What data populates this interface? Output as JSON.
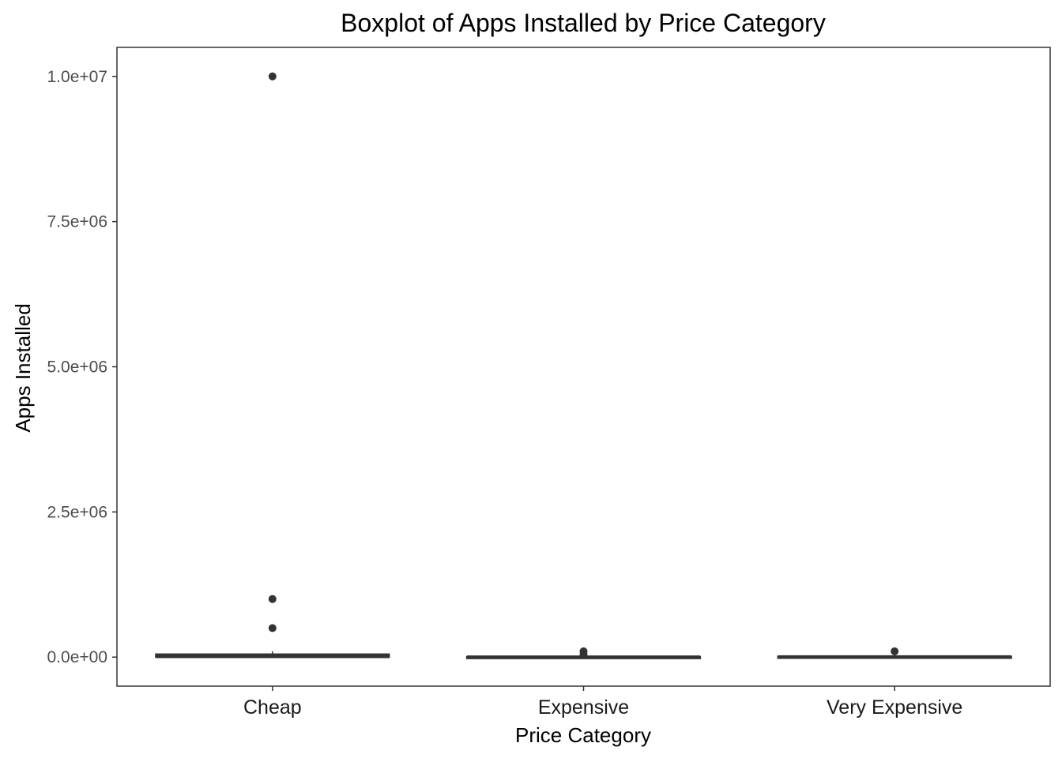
{
  "chart_data": {
    "type": "boxplot",
    "title": "Boxplot of Apps Installed by Price Category",
    "xlabel": "Price Category",
    "ylabel": "Apps Installed",
    "categories": [
      "Cheap",
      "Expensive",
      "Very Expensive"
    ],
    "ylim": [
      -500000,
      10500000
    ],
    "y_ticks": [
      0,
      2500000,
      5000000,
      7500000,
      10000000
    ],
    "y_tick_labels": [
      "0.0e+00",
      "2.5e+06",
      "5.0e+06",
      "7.5e+06",
      "1.0e+07"
    ],
    "boxes": [
      {
        "category": "Cheap",
        "min": 0,
        "q1": 1000,
        "median": 10000,
        "q3": 50000,
        "max": 100000,
        "outliers": [
          500000,
          1000000,
          10000000
        ]
      },
      {
        "category": "Expensive",
        "min": 0,
        "q1": 0,
        "median": 1000,
        "q3": 5000,
        "max": 10000,
        "outliers": [
          50000,
          100000
        ]
      },
      {
        "category": "Very Expensive",
        "min": 0,
        "q1": 1000,
        "median": 5000,
        "q3": 10000,
        "max": 50000,
        "outliers": [
          100000
        ]
      }
    ],
    "grid": false,
    "legend": "none",
    "colors": {
      "box": "#333333",
      "outlier": "#333333",
      "panel_border": "#333333",
      "background": "#ffffff"
    }
  }
}
